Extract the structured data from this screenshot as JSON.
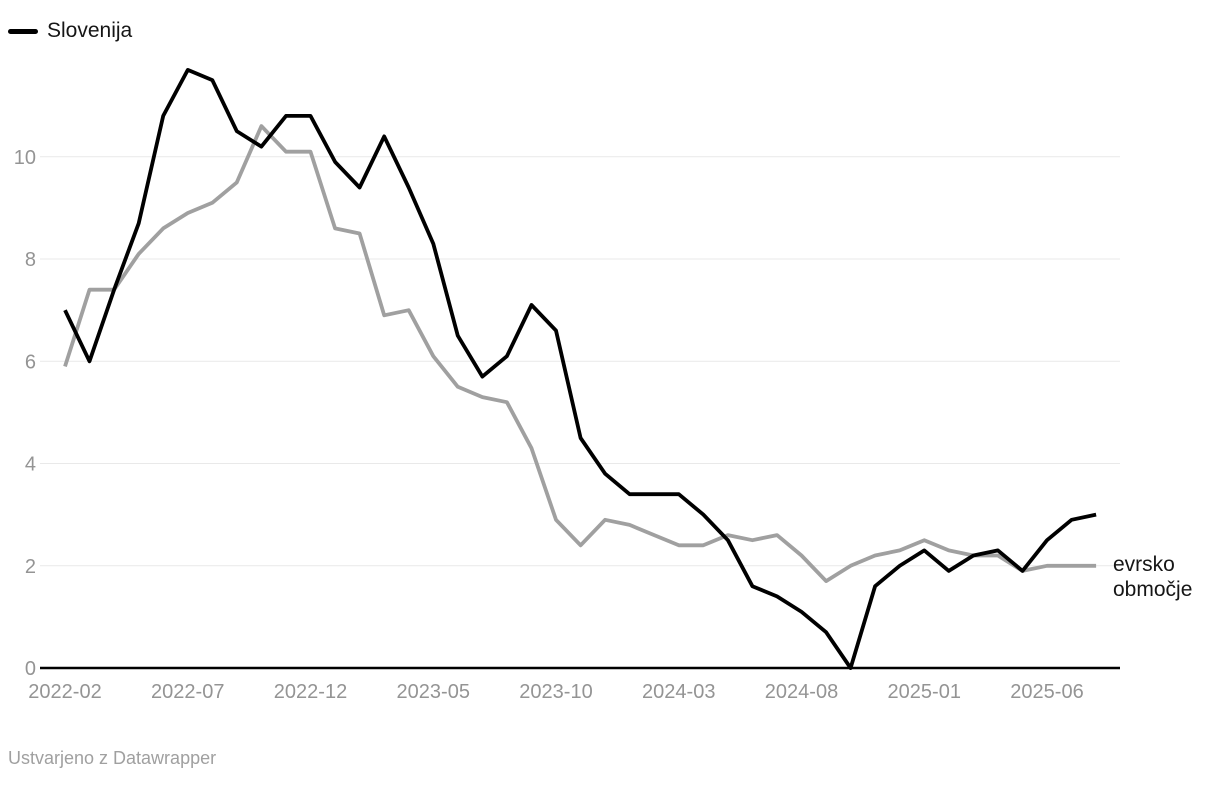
{
  "legend": {
    "label": "Slovenija"
  },
  "series_end_label": "evrsko območje",
  "footer": {
    "attribution": "Ustvarjeno z Datawrapper"
  },
  "colors": {
    "slovenija_line": "#000000",
    "evrsko_obmocje_line": "#a0a0a0",
    "gridline": "#e9e9e9",
    "baseline": "#000000",
    "axis_text": "#949494",
    "label_text": "#161616",
    "footer_text": "#a0a0a0",
    "background": "#ffffff"
  },
  "chart_data": {
    "type": "line",
    "x": [
      "2022-02",
      "2022-03",
      "2022-04",
      "2022-05",
      "2022-06",
      "2022-07",
      "2022-08",
      "2022-09",
      "2022-10",
      "2022-11",
      "2022-12",
      "2023-01",
      "2023-02",
      "2023-03",
      "2023-04",
      "2023-05",
      "2023-06",
      "2023-07",
      "2023-08",
      "2023-09",
      "2023-10",
      "2023-11",
      "2023-12",
      "2024-01",
      "2024-02",
      "2024-03",
      "2024-04",
      "2024-05",
      "2024-06",
      "2024-07",
      "2024-08",
      "2024-09",
      "2024-10",
      "2024-11",
      "2024-12",
      "2025-01",
      "2025-02",
      "2025-03",
      "2025-04",
      "2025-05",
      "2025-06",
      "2025-07",
      "2025-08"
    ],
    "series": [
      {
        "name": "evrsko območje",
        "color_key": "evrsko_obmocje_line",
        "values": [
          5.9,
          7.4,
          7.4,
          8.1,
          8.6,
          8.9,
          9.1,
          9.5,
          10.6,
          10.1,
          10.1,
          8.6,
          8.5,
          6.9,
          7.0,
          6.1,
          5.5,
          5.3,
          5.2,
          4.3,
          2.9,
          2.4,
          2.9,
          2.8,
          2.6,
          2.4,
          2.4,
          2.6,
          2.5,
          2.6,
          2.2,
          1.7,
          2.0,
          2.2,
          2.3,
          2.5,
          2.3,
          2.2,
          2.2,
          1.9,
          2.0,
          2.0,
          2.0
        ]
      },
      {
        "name": "Slovenija",
        "color_key": "slovenija_line",
        "values": [
          7.0,
          6.0,
          7.4,
          8.7,
          10.8,
          11.7,
          11.5,
          10.5,
          10.2,
          10.8,
          10.8,
          9.9,
          9.4,
          10.4,
          9.4,
          8.3,
          6.5,
          5.7,
          6.1,
          7.1,
          6.6,
          4.5,
          3.8,
          3.4,
          3.4,
          3.4,
          3.0,
          2.5,
          1.6,
          1.4,
          1.1,
          0.7,
          0.0,
          1.6,
          2.0,
          2.3,
          1.9,
          2.2,
          2.3,
          1.9,
          2.5,
          2.9,
          3.0
        ]
      }
    ],
    "x_tick_labels": [
      "2022-02",
      "2022-07",
      "2022-12",
      "2023-05",
      "2023-10",
      "2024-03",
      "2024-08",
      "2025-01",
      "2025-06"
    ],
    "x_tick_month_indices": [
      0,
      5,
      10,
      15,
      20,
      25,
      30,
      35,
      40
    ],
    "y_tick_labels": [
      "0",
      "2",
      "4",
      "6",
      "8",
      "10"
    ],
    "y_ticks": [
      0,
      2,
      4,
      6,
      8,
      10
    ],
    "ylim": [
      0,
      11.85
    ],
    "grid": "horizontal",
    "legend_position": "top-left",
    "title": "",
    "xlabel": "",
    "ylabel": ""
  }
}
